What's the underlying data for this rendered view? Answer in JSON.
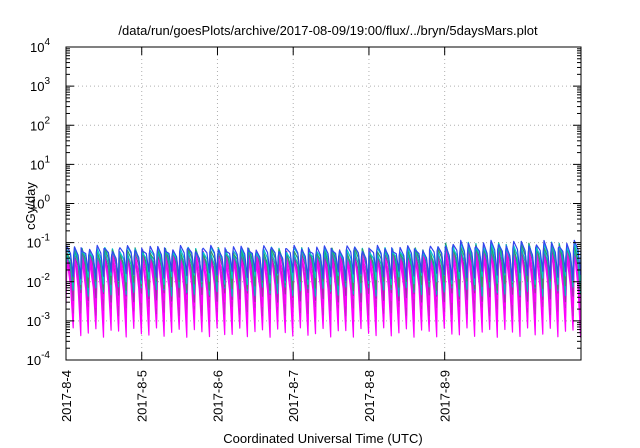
{
  "chart_data": {
    "type": "line",
    "title": "/data/run/goesPlots/archive/2017-08-09/19:00/flux/../bryn/5daysMars.plot",
    "xlabel": "Coordinated Universal Time (UTC)",
    "ylabel": "cGy/day",
    "yscale": "log",
    "ylim_exponents": [
      -4,
      4
    ],
    "y_ticks": [
      {
        "base": "10",
        "exp": "-4"
      },
      {
        "base": "10",
        "exp": "-3"
      },
      {
        "base": "10",
        "exp": "-2"
      },
      {
        "base": "10",
        "exp": "-1"
      },
      {
        "base": "10",
        "exp": "0"
      },
      {
        "base": "10",
        "exp": "1"
      },
      {
        "base": "10",
        "exp": "2"
      },
      {
        "base": "10",
        "exp": "3"
      },
      {
        "base": "10",
        "exp": "4"
      }
    ],
    "x_range_days": [
      0,
      6.8
    ],
    "x_ticks": [
      "2017-8-4",
      "2017-8-5",
      "2017-8-6",
      "2017-8-7",
      "2017-8-8",
      "2017-8-9"
    ],
    "grid": true,
    "oscillation": {
      "period_days": 0.1,
      "peak_exponent": -1.15,
      "late_peak_exponent": -1.02,
      "late_start_day": 5.0
    },
    "series": [
      {
        "color": "#ff00ff",
        "trough_exponent": -3.3,
        "peak_offset": 0.55
      },
      {
        "color": "#ff00ff",
        "trough_exponent": -3.0,
        "peak_offset": 0.45
      },
      {
        "color": "#cc22cc",
        "trough_exponent": -2.75,
        "peak_offset": 0.35
      },
      {
        "color": "#ff00ff",
        "trough_exponent": -2.55,
        "peak_offset": 0.3
      },
      {
        "color": "#9933aa",
        "trough_exponent": -2.4,
        "peak_offset": 0.22
      },
      {
        "color": "#00bbbb",
        "trough_exponent": -2.25,
        "peak_offset": 0.15
      },
      {
        "color": "#339966",
        "trough_exponent": -2.1,
        "peak_offset": 0.12
      },
      {
        "color": "#00cccc",
        "trough_exponent": -1.95,
        "peak_offset": 0.08
      },
      {
        "color": "#3344ee",
        "trough_exponent": -1.85,
        "peak_offset": 0.0
      }
    ]
  }
}
